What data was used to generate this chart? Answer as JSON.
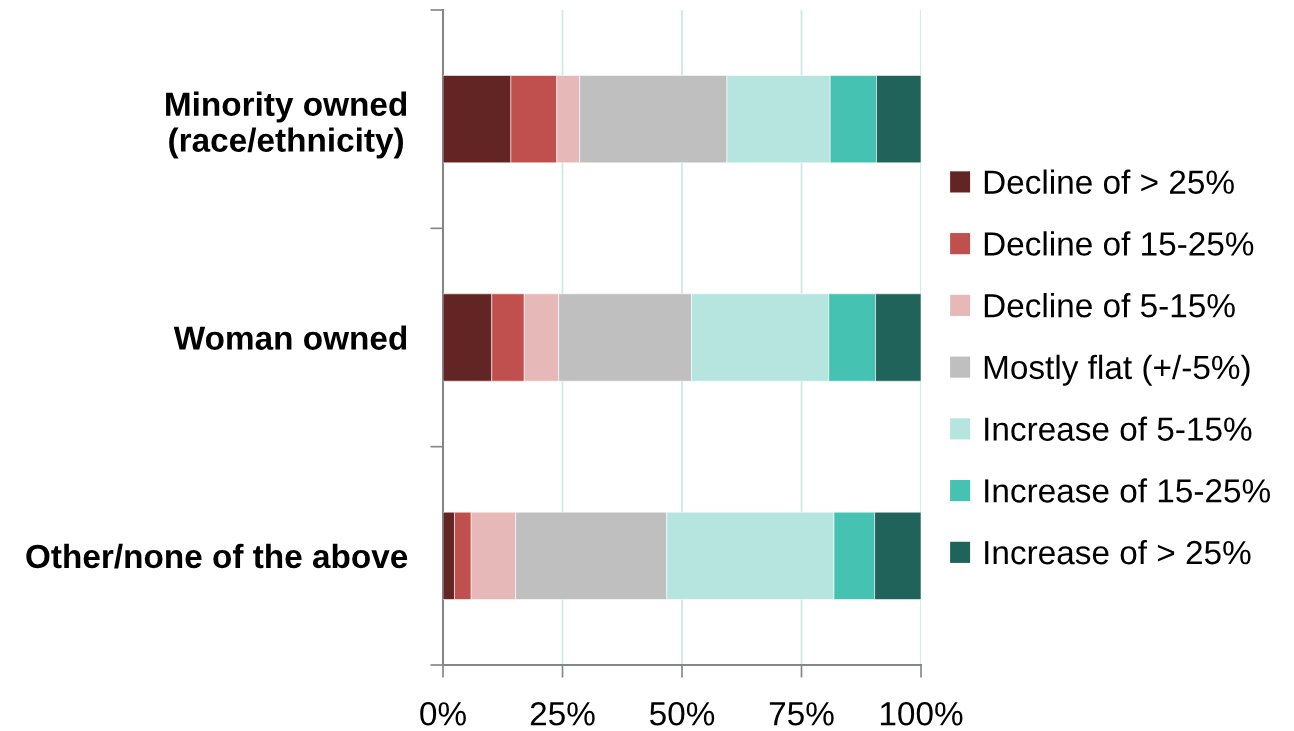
{
  "chart_data": {
    "type": "bar",
    "orientation": "horizontal",
    "stacked": true,
    "categories": [
      "Minority owned\n(race/ethnicity)",
      "Woman owned",
      "Other/none of the above"
    ],
    "series": [
      {
        "name": "Decline of > 25%",
        "color": "#632523",
        "values": [
          14.2,
          10.2,
          2.4
        ]
      },
      {
        "name": "Decline of 15-25%",
        "color": "#c0504d",
        "values": [
          9.6,
          6.8,
          3.5
        ]
      },
      {
        "name": "Decline of 5-15%",
        "color": "#e6b9b8",
        "values": [
          4.8,
          7.2,
          9.3
        ]
      },
      {
        "name": "Mostly flat (+/-5%)",
        "color": "#bfbfbf",
        "values": [
          30.8,
          27.8,
          31.6
        ]
      },
      {
        "name": "Increase of 5-15%",
        "color": "#b6e5e0",
        "values": [
          21.6,
          28.7,
          35.0
        ]
      },
      {
        "name": "Increase of 15-25%",
        "color": "#45c2b2",
        "values": [
          9.7,
          9.8,
          8.5
        ]
      },
      {
        "name": "Increase of > 25%",
        "color": "#20635a",
        "values": [
          9.3,
          9.5,
          9.7
        ]
      }
    ],
    "xlim": [
      0,
      100
    ],
    "xticks": [
      {
        "value": 0,
        "label": "0%"
      },
      {
        "value": 25,
        "label": "25%"
      },
      {
        "value": 50,
        "label": "50%"
      },
      {
        "value": 75,
        "label": "75%"
      },
      {
        "value": 100,
        "label": "100%"
      }
    ],
    "grid": "x",
    "legend": "right"
  }
}
